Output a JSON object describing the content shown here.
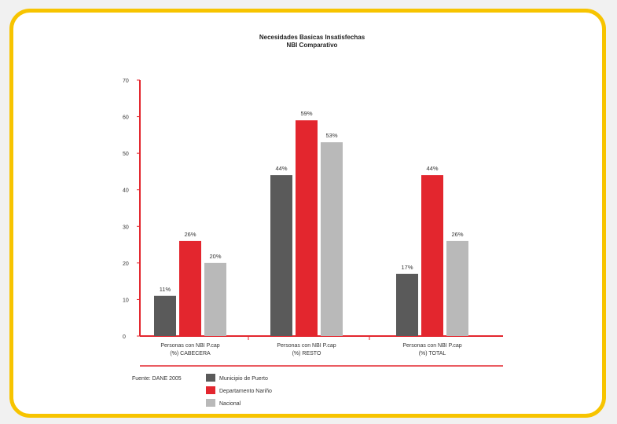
{
  "chart_data": {
    "type": "bar",
    "title": "Necesidades Basicas Insatisfechas",
    "subtitle": "NBI Comparativo",
    "categories": [
      [
        "Personas con NBI P.cap",
        "(%) CABECERA"
      ],
      [
        "Personas con NBI P.cap",
        "(%) RESTO"
      ],
      [
        "Personas con NBI P.cap",
        "(%) TOTAL"
      ]
    ],
    "series": [
      {
        "name": "Municipio de Puerto",
        "color": "#5a5a5a",
        "values": [
          11,
          44,
          17
        ],
        "labels": [
          "11%",
          "44%",
          "17%"
        ]
      },
      {
        "name": "Departamento Nariño",
        "color": "#e3262e",
        "values": [
          26,
          59,
          44
        ],
        "labels": [
          "26%",
          "59%",
          "44%"
        ]
      },
      {
        "name": "Nacional",
        "color": "#b9b9b9",
        "values": [
          20,
          53,
          26
        ],
        "labels": [
          "20%",
          "53%",
          "26%"
        ]
      }
    ],
    "yticks": [
      "70",
      "60",
      "50",
      "40",
      "30",
      "20",
      "10",
      "0"
    ],
    "ylim": [
      0,
      70
    ],
    "source": "Fuente: DANE 2005",
    "legend_position": "bottom",
    "axis_color": "#e3262e"
  }
}
